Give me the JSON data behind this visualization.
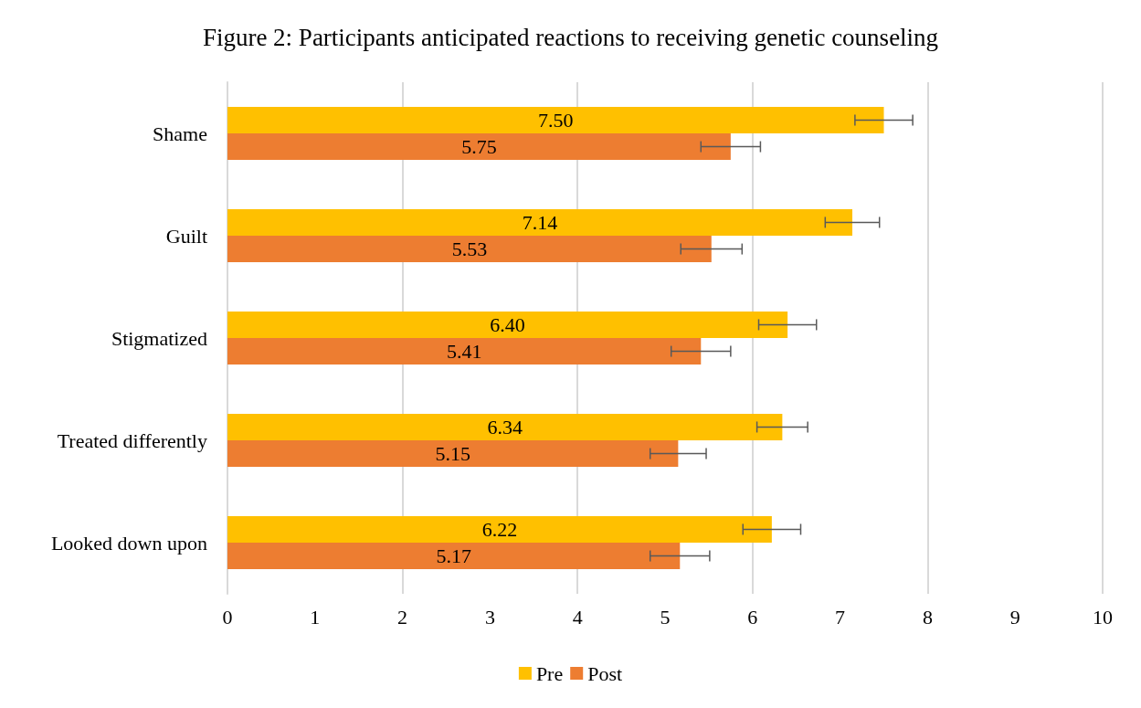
{
  "chart_data": {
    "type": "bar",
    "orientation": "horizontal",
    "title": "Figure 2: Participants anticipated reactions to receiving genetic counseling",
    "categories": [
      "Shame",
      "Guilt",
      "Stigmatized",
      "Treated differently",
      "Looked down upon"
    ],
    "series": [
      {
        "name": "Pre",
        "color": "#ffc000",
        "values": [
          7.5,
          7.14,
          6.4,
          6.34,
          6.22
        ],
        "value_labels": [
          "7.50",
          "7.14",
          "6.40",
          "6.34",
          "6.22"
        ],
        "errors": [
          0.33,
          0.31,
          0.33,
          0.29,
          0.33
        ]
      },
      {
        "name": "Post",
        "color": "#ed7d31",
        "values": [
          5.75,
          5.53,
          5.41,
          5.15,
          5.17
        ],
        "value_labels": [
          "5.75",
          "5.53",
          "5.41",
          "5.15",
          "5.17"
        ],
        "errors": [
          0.34,
          0.35,
          0.34,
          0.32,
          0.34
        ]
      }
    ],
    "xlim": [
      0,
      10
    ],
    "xticks": [
      0,
      1,
      2,
      3,
      4,
      5,
      6,
      7,
      8,
      9,
      10
    ],
    "grid": "x",
    "legend": "bottom"
  }
}
